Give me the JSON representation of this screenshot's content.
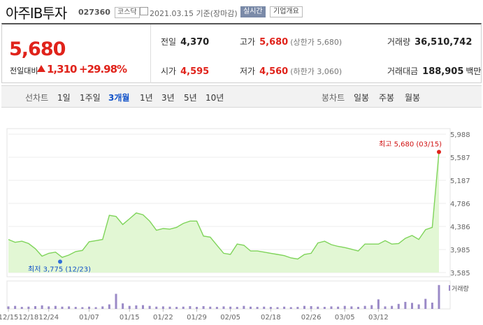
{
  "header": {
    "stock_name": "아주IB투자",
    "stock_code": "027360",
    "market_badge": "코스닥",
    "date_text": "2021.03.15 기준(장마감)",
    "realtime_button": "실시간",
    "company_button": "기업개요"
  },
  "quote": {
    "price": "5,680",
    "change_label": "전일대비",
    "change_amount": "1,310",
    "change_percent": "+29.98%",
    "prev_close_label": "전일",
    "prev_close": "4,370",
    "high_label": "고가",
    "high": "5,680",
    "upper_limit": "(상한가 5,680)",
    "volume_label": "거래량",
    "volume": "36,510,742",
    "open_label": "시가",
    "open": "4,595",
    "low_label": "저가",
    "low": "4,560",
    "lower_limit": "(하한가 3,060)",
    "value_label": "거래대금",
    "value": "188,905",
    "value_unit": "백만"
  },
  "tabs": {
    "line_label": "선차트",
    "line_periods": [
      "1일",
      "1주일",
      "3개월",
      "1년",
      "3년",
      "5년",
      "10년"
    ],
    "selected": "3개월",
    "candle_label": "봉차트",
    "candle_periods": [
      "일봉",
      "주봉",
      "월봉"
    ]
  },
  "colors": {
    "up": "#e0231b",
    "down": "#1152c9",
    "line": "#7fd45a",
    "fill": "#e2f7d4",
    "volume": "#9b8ac7"
  },
  "chart_data": {
    "type": "line",
    "title": "",
    "y_ticks": [
      5988,
      5587,
      5187,
      4786,
      4386,
      3985,
      3585
    ],
    "ylim": [
      3585,
      5988
    ],
    "x_tick_labels": [
      "12/15",
      "12/18",
      "12/24",
      "01/07",
      "01/15",
      "01/22",
      "01/29",
      "02/05",
      "02/18",
      "02/26",
      "03/05",
      "03/12"
    ],
    "x_tick_index": [
      0,
      3,
      6,
      12,
      18,
      23,
      28,
      33,
      39,
      45,
      50,
      55
    ],
    "values": [
      4160,
      4110,
      4130,
      4090,
      4000,
      3870,
      3920,
      3940,
      3850,
      3890,
      3950,
      3970,
      4120,
      4140,
      4160,
      4580,
      4560,
      4420,
      4520,
      4620,
      4590,
      4480,
      4320,
      4350,
      4340,
      4370,
      4440,
      4480,
      4480,
      4220,
      4200,
      4060,
      3920,
      3900,
      4080,
      4060,
      3960,
      3960,
      3940,
      3920,
      3900,
      3880,
      3840,
      3820,
      3900,
      3920,
      4100,
      4130,
      4070,
      4040,
      4020,
      3990,
      3960,
      4080,
      4080,
      4080,
      4140,
      4080,
      4090,
      4180,
      4230,
      4160,
      4330,
      4370,
      5680
    ],
    "volumes": [
      0.1,
      0.12,
      0.08,
      0.09,
      0.11,
      0.14,
      0.1,
      0.12,
      0.09,
      0.1,
      0.08,
      0.07,
      0.09,
      0.07,
      0.1,
      0.18,
      0.6,
      0.22,
      0.12,
      0.14,
      0.15,
      0.12,
      0.09,
      0.1,
      0.09,
      0.08,
      0.09,
      0.11,
      0.08,
      0.11,
      0.09,
      0.08,
      0.1,
      0.09,
      0.08,
      0.12,
      0.09,
      0.08,
      0.09,
      0.08,
      0.07,
      0.09,
      0.07,
      0.08,
      0.12,
      0.11,
      0.09,
      0.08,
      0.1,
      0.09,
      0.12,
      0.1,
      0.08,
      0.12,
      0.15,
      0.38,
      0.1,
      0.12,
      0.2,
      0.28,
      0.24,
      0.18,
      0.4,
      0.25,
      0.95
    ],
    "high_label": "최고 5,680 (03/15)",
    "low_label": "최저 3,775 (12/23)",
    "high_index": 64,
    "low_index": 8,
    "low_value": 3775,
    "volume_label": "거래량"
  }
}
